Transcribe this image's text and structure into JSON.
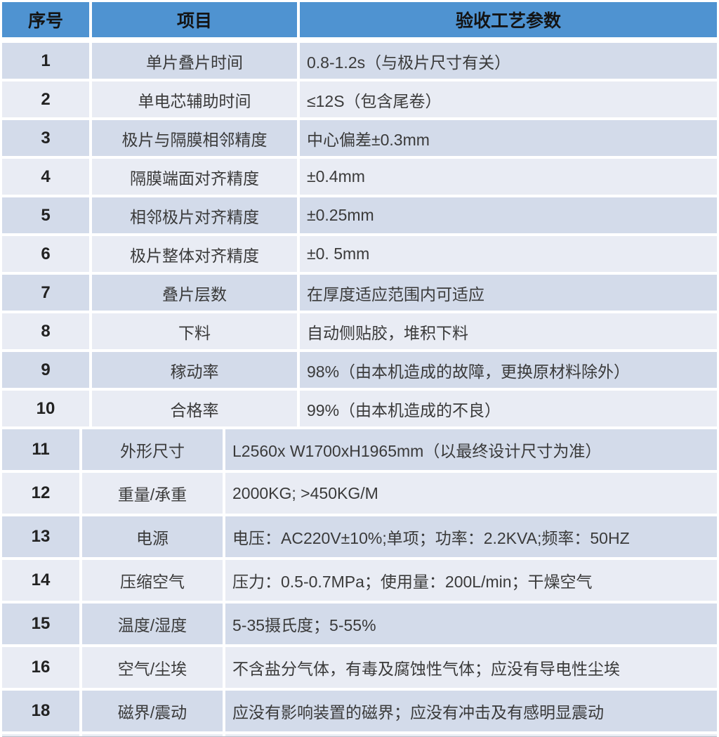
{
  "header": {
    "no": "序号",
    "item": "项目",
    "param": "验收工艺参数"
  },
  "rows_a": [
    {
      "no": "1",
      "item": "单片叠片时间",
      "param": "0.8-1.2s（与极片尺寸有关）"
    },
    {
      "no": "2",
      "item": "单电芯辅助时间",
      "param": "≤12S（包含尾卷）"
    },
    {
      "no": "3",
      "item": "极片与隔膜相邻精度",
      "param": "中心偏差±0.3mm"
    },
    {
      "no": "4",
      "item": "隔膜端面对齐精度",
      "param": "±0.4mm"
    },
    {
      "no": "5",
      "item": "相邻极片对齐精度",
      "param": "±0.25mm"
    },
    {
      "no": "6",
      "item": "极片整体对齐精度",
      "param": "±0. 5mm"
    },
    {
      "no": "7",
      "item": "叠片层数",
      "param": "在厚度适应范围内可适应"
    },
    {
      "no": "8",
      "item": "下料",
      "param": "自动侧贴胶，堆积下料"
    },
    {
      "no": "9",
      "item": "稼动率",
      "param": "98%（由本机造成的故障，更换原材料除外）"
    },
    {
      "no": "10",
      "item": "合格率",
      "param": "99%（由本机造成的不良）"
    }
  ],
  "rows_b": [
    {
      "no": "11",
      "item": "外形尺寸",
      "param": "L2560x W1700xH1965mm（以最终设计尺寸为准）"
    },
    {
      "no": "12",
      "item": "重量/承重",
      "param": "2000KG; >450KG/M"
    },
    {
      "no": "13",
      "item": "电源",
      "param": "电压：AC220V±10%;单项；功率：2.2KVA;频率：50HZ"
    },
    {
      "no": "14",
      "item": "压缩空气",
      "param": "压力：0.5-0.7MPa；使用量：200L/min；干燥空气"
    },
    {
      "no": "15",
      "item": "温度/湿度",
      "param": "5-35摄氏度；5-55%"
    },
    {
      "no": "16",
      "item": "空气/尘埃",
      "param": "不含盐分气体，有毒及腐蚀性气体；应没有导电性尘埃"
    },
    {
      "no": "18",
      "item": "磁界/震动",
      "param": "应没有影响装置的磁界；应没有冲击及有感明显震动"
    }
  ],
  "colors": {
    "header_bg": "#4f93d1",
    "band_dark": "#d3dbea",
    "band_light": "#e9ecf4",
    "header_text": "#141414",
    "body_text": "#3a3a3a"
  }
}
